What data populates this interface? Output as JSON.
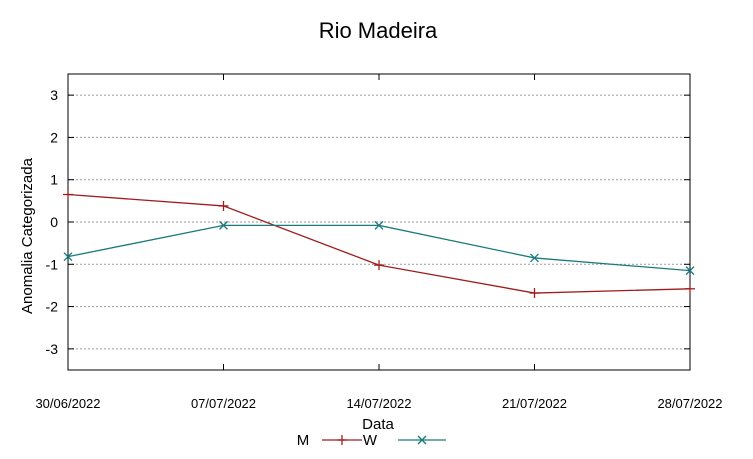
{
  "chart_data": {
    "type": "line",
    "title": "Rio Madeira",
    "xlabel": "Data",
    "ylabel": "Anomalia Categorizada",
    "categories": [
      "30/06/2022",
      "07/07/2022",
      "14/07/2022",
      "21/07/2022",
      "28/07/2022"
    ],
    "yticks": [
      "3",
      "2",
      "1",
      "0",
      "-1",
      "-2",
      "-3"
    ],
    "ylim": [
      -3.5,
      3.5
    ],
    "grid": true,
    "legend_position": "bottom-center",
    "series": [
      {
        "name": "M",
        "color": "#a01c1c",
        "marker": "plus",
        "values": [
          0.65,
          0.38,
          -1.02,
          -1.68,
          -1.58
        ]
      },
      {
        "name": "W",
        "color": "#1a7a7a",
        "marker": "cross",
        "values": [
          -0.82,
          -0.08,
          -0.08,
          -0.85,
          -1.15
        ]
      }
    ]
  }
}
